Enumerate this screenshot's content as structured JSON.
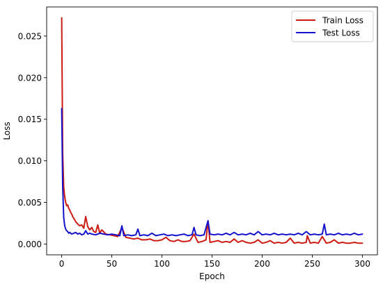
{
  "chart_data": {
    "type": "line",
    "title": "",
    "xlabel": "Epoch",
    "ylabel": "Loss",
    "xlim": [
      -15,
      315
    ],
    "ylim": [
      -0.0013,
      0.0285
    ],
    "x_ticks": [
      0,
      50,
      100,
      150,
      200,
      250,
      300
    ],
    "y_ticks": [
      0.0,
      0.005,
      0.01,
      0.015,
      0.02,
      0.025
    ],
    "y_tick_labels": [
      "0.000",
      "0.005",
      "0.010",
      "0.015",
      "0.020",
      "0.025"
    ],
    "grid": false,
    "legend_position": "top-right",
    "series": [
      {
        "name": "Train Loss",
        "color": "#cc1a12",
        "x": [
          0,
          1,
          2,
          3,
          4,
          5,
          6,
          7,
          8,
          9,
          10,
          11,
          12,
          14,
          16,
          18,
          20,
          22,
          24,
          26,
          28,
          30,
          32,
          34,
          36,
          38,
          40,
          44,
          48,
          52,
          56,
          60,
          64,
          68,
          72,
          76,
          80,
          84,
          88,
          92,
          96,
          100,
          104,
          108,
          112,
          116,
          120,
          124,
          128,
          132,
          136,
          140,
          144,
          146,
          148,
          152,
          156,
          160,
          164,
          168,
          172,
          176,
          180,
          184,
          188,
          192,
          196,
          200,
          204,
          208,
          212,
          216,
          220,
          224,
          228,
          232,
          236,
          240,
          244,
          245,
          248,
          252,
          256,
          260,
          264,
          268,
          272,
          276,
          280,
          284,
          288,
          292,
          296,
          300
        ],
        "y": [
          0.0272,
          0.011,
          0.0068,
          0.0057,
          0.005,
          0.0046,
          0.0047,
          0.0043,
          0.0041,
          0.0038,
          0.0036,
          0.0033,
          0.0031,
          0.0027,
          0.0024,
          0.0022,
          0.0023,
          0.0019,
          0.0033,
          0.0021,
          0.0017,
          0.002,
          0.0015,
          0.0014,
          0.0023,
          0.0013,
          0.0017,
          0.0012,
          0.0011,
          0.001,
          0.0009,
          0.002,
          0.0008,
          0.0007,
          0.0006,
          0.0007,
          0.0005,
          0.0005,
          0.0006,
          0.0004,
          0.0004,
          0.0005,
          0.0008,
          0.0004,
          0.0003,
          0.0005,
          0.0003,
          0.0003,
          0.0004,
          0.0012,
          0.0002,
          0.0003,
          0.0005,
          0.0028,
          0.0002,
          0.0003,
          0.0004,
          0.0002,
          0.0003,
          0.0002,
          0.0006,
          0.0002,
          0.0004,
          0.0002,
          0.0001,
          0.0002,
          0.0005,
          0.0001,
          0.0002,
          0.0004,
          0.0001,
          0.0002,
          0.0001,
          0.0002,
          0.0007,
          0.0001,
          0.0002,
          0.0001,
          0.0002,
          0.001,
          0.0001,
          0.0002,
          0.0001,
          0.0009,
          0.0001,
          0.0002,
          0.0005,
          0.0001,
          0.0002,
          0.0001,
          0.0001,
          0.0002,
          0.0001,
          0.0001
        ]
      },
      {
        "name": "Test Loss",
        "color": "#1212cc",
        "x": [
          0,
          1,
          2,
          3,
          4,
          5,
          6,
          7,
          8,
          10,
          12,
          14,
          16,
          18,
          20,
          22,
          24,
          26,
          28,
          30,
          34,
          38,
          42,
          46,
          50,
          54,
          58,
          60,
          62,
          66,
          70,
          74,
          76,
          78,
          82,
          86,
          90,
          94,
          98,
          102,
          106,
          110,
          114,
          118,
          122,
          126,
          130,
          132,
          134,
          138,
          142,
          146,
          148,
          152,
          156,
          160,
          164,
          168,
          172,
          176,
          180,
          184,
          188,
          192,
          196,
          200,
          204,
          208,
          212,
          216,
          220,
          224,
          228,
          232,
          236,
          240,
          244,
          248,
          252,
          256,
          260,
          262,
          264,
          268,
          272,
          276,
          280,
          284,
          288,
          292,
          296,
          300
        ],
        "y": [
          0.0163,
          0.007,
          0.0032,
          0.0022,
          0.0018,
          0.0016,
          0.0015,
          0.0013,
          0.0014,
          0.0012,
          0.0013,
          0.0014,
          0.0012,
          0.0013,
          0.0011,
          0.0012,
          0.0016,
          0.0012,
          0.0013,
          0.0012,
          0.0011,
          0.0013,
          0.0012,
          0.0011,
          0.0012,
          0.0011,
          0.001,
          0.0022,
          0.001,
          0.0011,
          0.001,
          0.0011,
          0.0018,
          0.001,
          0.0011,
          0.001,
          0.0013,
          0.001,
          0.0011,
          0.0012,
          0.001,
          0.0011,
          0.001,
          0.0011,
          0.0012,
          0.001,
          0.0011,
          0.002,
          0.0011,
          0.001,
          0.0011,
          0.0028,
          0.0012,
          0.0011,
          0.0012,
          0.0011,
          0.0013,
          0.0011,
          0.0014,
          0.0011,
          0.0012,
          0.0011,
          0.0013,
          0.0011,
          0.0015,
          0.0011,
          0.0012,
          0.0011,
          0.0013,
          0.0011,
          0.0012,
          0.0011,
          0.0012,
          0.0011,
          0.0013,
          0.0011,
          0.0015,
          0.0011,
          0.0012,
          0.0011,
          0.0012,
          0.0024,
          0.0011,
          0.0012,
          0.0011,
          0.0013,
          0.0011,
          0.0012,
          0.0011,
          0.0013,
          0.0011,
          0.0012
        ]
      }
    ]
  }
}
